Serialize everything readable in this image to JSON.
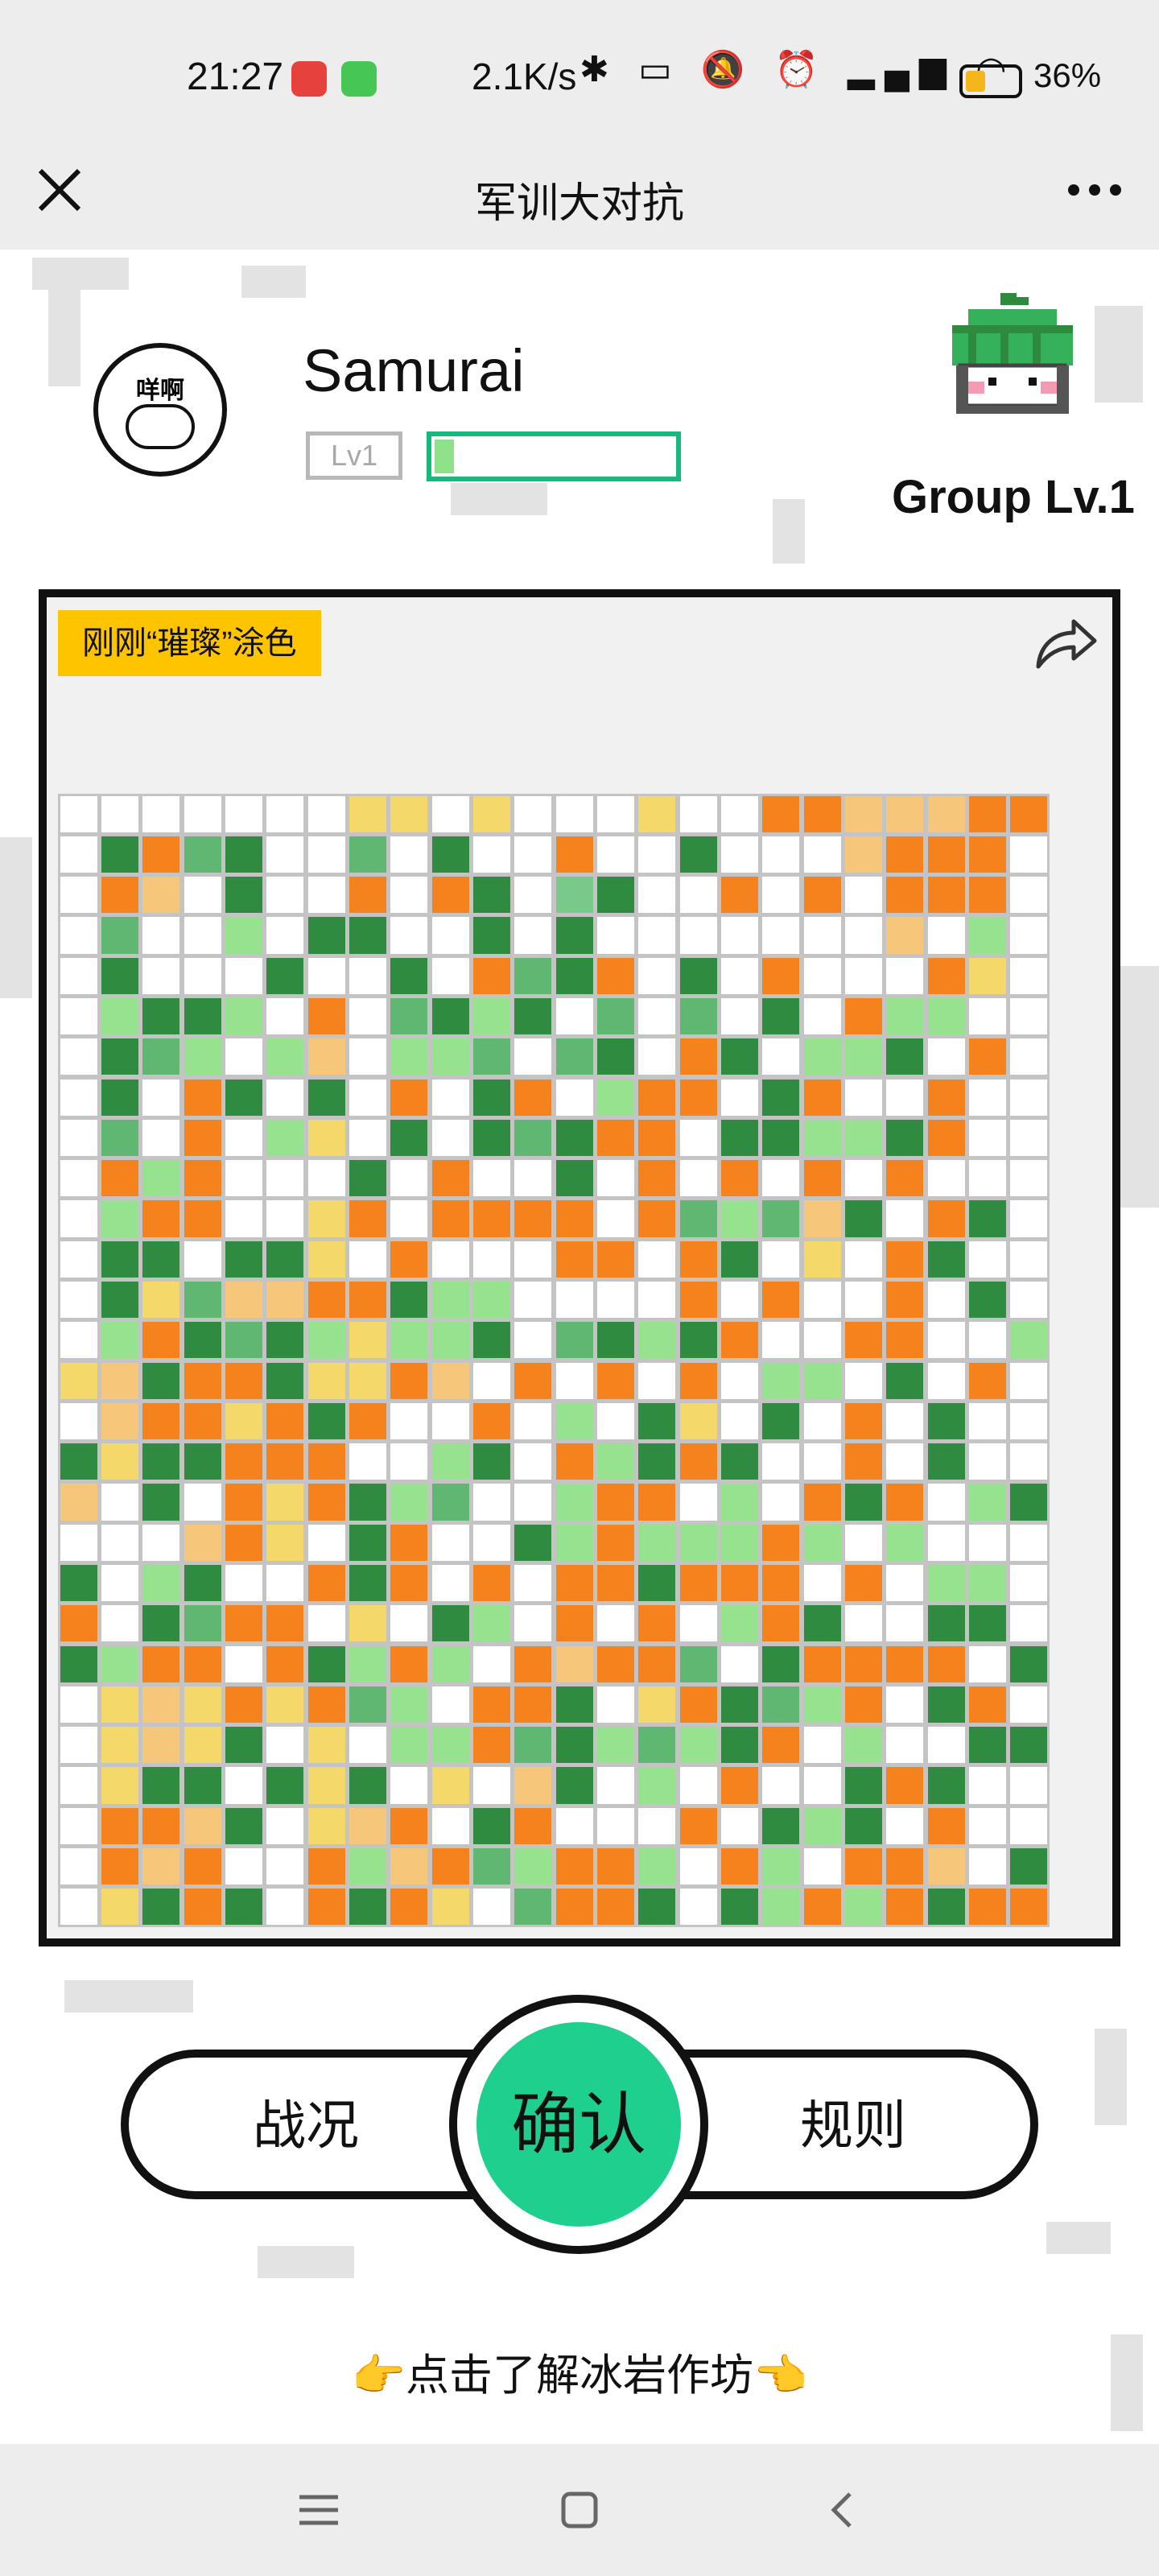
{
  "status_bar": {
    "time": "21:27",
    "net_speed": "2.1K/s",
    "battery_pct": "36%",
    "battery_level": 0.36,
    "icons": [
      "bluetooth-icon",
      "vibrate-icon",
      "mute-icon",
      "alarm-icon",
      "signal-icon",
      "wifi-icon",
      "battery-icon"
    ]
  },
  "nav": {
    "title": "军训大对抗",
    "more_label": "•••"
  },
  "profile": {
    "name": "Samurai",
    "level": "Lv1",
    "avatar_text": "咩啊",
    "xp_progress": 0.08
  },
  "group": {
    "label": "Group Lv.1"
  },
  "canvas": {
    "tag": "刚刚“璀璨”涂色",
    "palette": {
      "W": "#ffffff",
      "Y": "#f4d96a",
      "y": "#f6c77a",
      "O": "#f6821e",
      "o": "#fba248",
      "G": "#2f8b3f",
      "g": "#5fb772",
      "L": "#97e28f",
      "l": "#79c98a"
    },
    "rows": [
      "WWWWWWWYYWYWWWYWWOOyyyOOO",
      "WGOgGWWgWGWWOWWGWWWyOOO",
      "WOyWGWWOWOGWlGWWOWOWOOO",
      "WgWWLWGGWWGWGWWWWWWWyWL",
      "WGWWWGWWGWOgGOWGWOWWWOYW",
      "WLGGLWOWgGLGWgWgWGWOLLW",
      "WGgLWLyWLLgWgGWOGWLLGWO",
      "WGWOGWGWOWGOWLOOWGOWWOW",
      "WgWOWLYWGWGgGOOWGGLLGOW",
      "WOLOWWWGWOWWGWOWOWOWOWW",
      "WLOOWWYOWOOOOWOgLgyGWOGW",
      "WGGWGGYWOWWWOOWOGWYWOGWW",
      "WGYgyyOOGLLWWWWOWOWWOWGW",
      "WLOGgGLYLLGWgGLGOWWOOWWL",
      "YyGOOGYYOyWOWOWOWLLWGWOWO",
      "WyOOYOGOWWOWLWGYWGWOWGW",
      "GYGGOOOWWLGWOLGOGWWOWGW",
      "yWGWOYOGLgWWLOOWLWOGOWLG",
      "WWWyOYWGOWWGLOLLLOLWLWW",
      "GWLGWWOGOWOWOOGOOOWOWLL",
      "OWGgOOWYWGLWOWOWLOGWWGG",
      "GLOOWOGLOLWOyOOgWGOOOOWG",
      "WYyYOYOgLWOOGWYOGgLOWGO",
      "WYyYGWYWLLOgGLgLGOWLWWGG",
      "WYGGWGYGWYWyGWLWOWWGOGW",
      "WOOyGWYyOWGOWWWOWGLGWOWWW",
      "WOyOWWOLyOgLOOLWOLWOOyWG",
      "WYGOGWOGOYWgOOGWGLOLOGOOO"
    ]
  },
  "actions": {
    "situation": "战况",
    "confirm": "确认",
    "rules": "规则"
  },
  "footer": {
    "link_text": "👉点击了解冰岩作坊👈"
  },
  "system_nav": {
    "icons": [
      "menu-icon",
      "home-icon",
      "back-icon"
    ]
  }
}
